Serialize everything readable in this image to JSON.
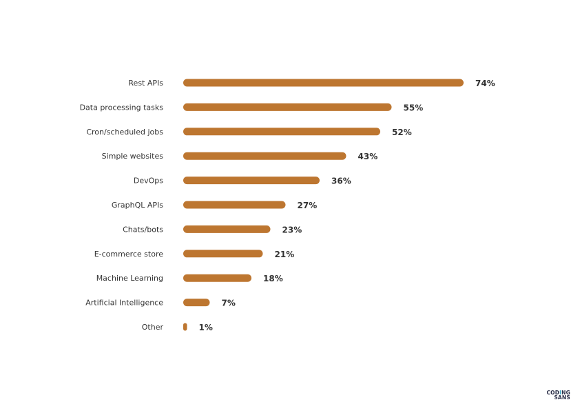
{
  "chart_data": {
    "type": "bar",
    "orientation": "horizontal",
    "categories": [
      "Rest APIs",
      "Data processing tasks",
      "Cron/scheduled jobs",
      "Simple websites",
      "DevOps",
      "GraphQL APIs",
      "Chats/bots",
      "E-commerce store",
      "Machine Learning",
      "Artificial Intelligence",
      "Other"
    ],
    "values": [
      74,
      55,
      52,
      43,
      36,
      27,
      23,
      21,
      18,
      7,
      1
    ],
    "value_labels": [
      "74%",
      "55%",
      "52%",
      "43%",
      "36%",
      "27%",
      "23%",
      "21%",
      "18%",
      "7%",
      "1%"
    ],
    "unit": "%",
    "bar_color": "#bd7630",
    "grid": false,
    "legend": "none",
    "title": "",
    "xlabel": "",
    "ylabel": ""
  },
  "logo": {
    "line1_a": "COD",
    "line1_accent": "I",
    "line1_b": "NG",
    "line2": "SANS"
  }
}
